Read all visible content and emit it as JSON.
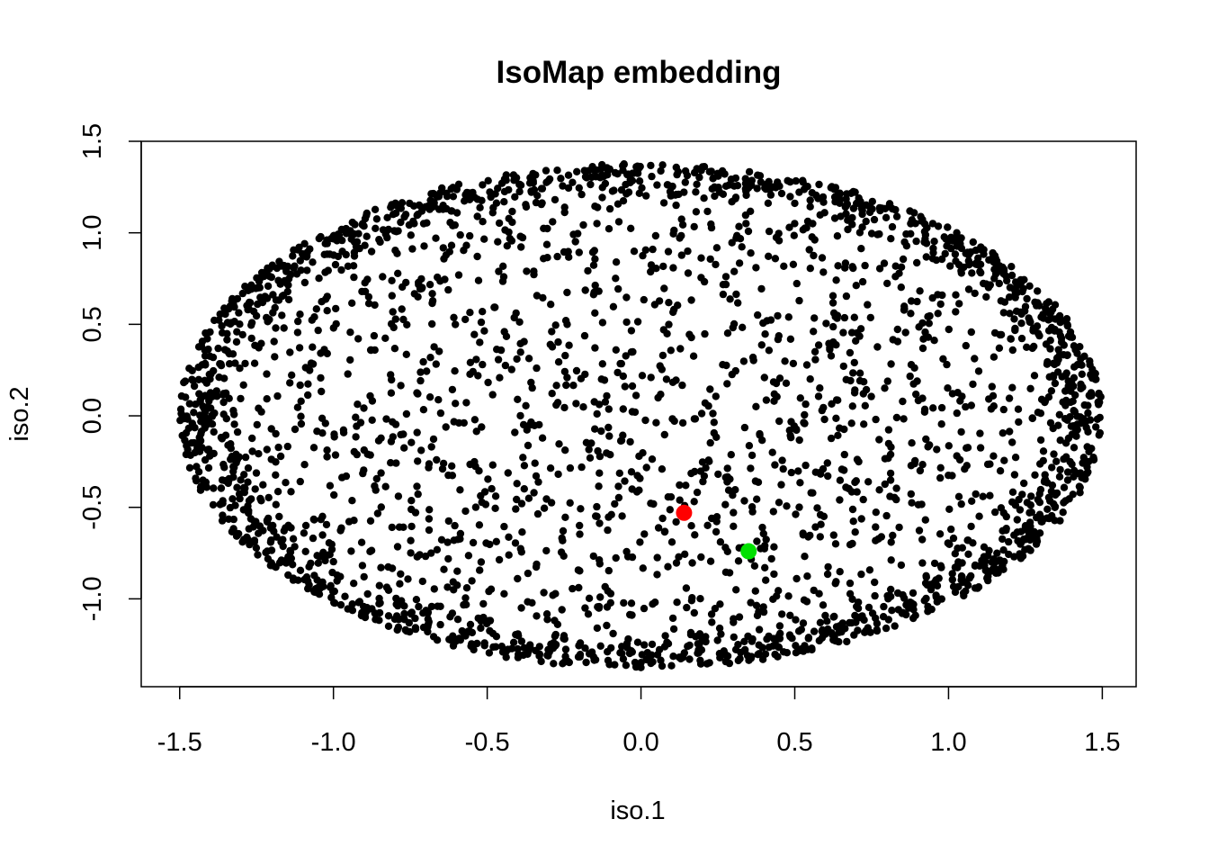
{
  "chart_data": {
    "type": "scatter",
    "title": "IsoMap embedding",
    "xlabel": "iso.1",
    "ylabel": "iso.2",
    "xlim": [
      -1.625,
      1.61
    ],
    "ylim": [
      -1.48,
      1.5
    ],
    "x_ticks": [
      -1.5,
      -1.0,
      -0.5,
      0.0,
      0.5,
      1.0,
      1.5
    ],
    "x_tick_labels": [
      "-1.5",
      "-1.0",
      "-0.5",
      "0.0",
      "0.5",
      "1.0",
      "1.5"
    ],
    "y_ticks": [
      -1.0,
      -0.5,
      0.0,
      0.5,
      1.0,
      1.5
    ],
    "y_tick_labels": [
      "-1.0",
      "-0.5",
      "0.0",
      "0.5",
      "1.0",
      "1.5"
    ],
    "grid": false,
    "point_cloud": {
      "description": "points filling an ellipse, denser near the boundary",
      "count": 3000,
      "x_semi_axis": 1.5,
      "y_semi_axis": 1.38,
      "color": "#000000"
    },
    "highlights": [
      {
        "x": 0.14,
        "y": -0.53,
        "color": "#ff0000"
      },
      {
        "x": 0.35,
        "y": -0.74,
        "color": "#00e000"
      }
    ]
  }
}
